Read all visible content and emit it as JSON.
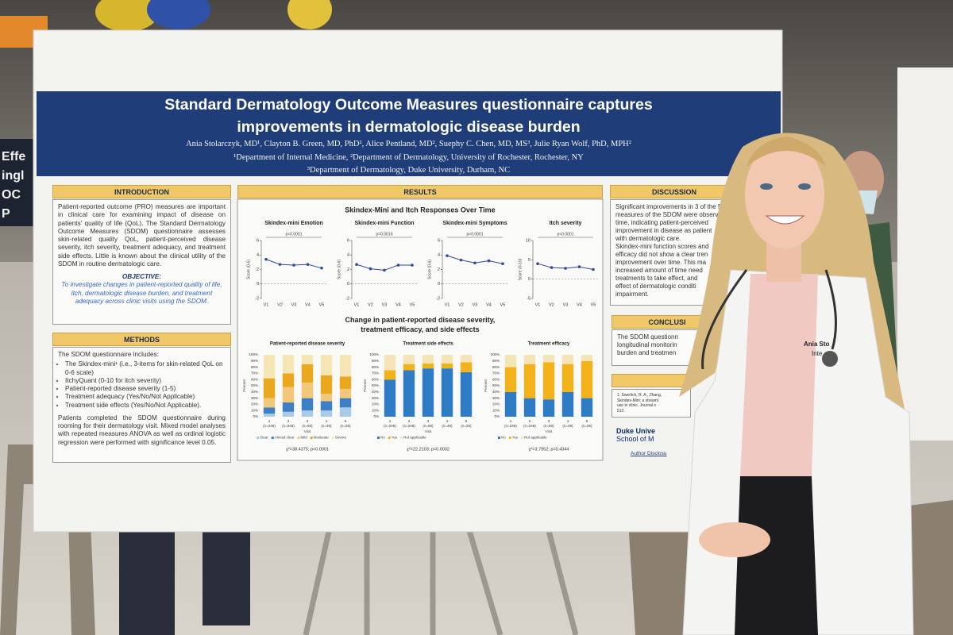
{
  "poster": {
    "title": "Standard Dermatology Outcome Measures questionnaire captures improvements in dermatologic disease burden",
    "authors": "Ania Stolarczyk, MD¹, Clayton B. Green, MD, PhD², Alice Pentland, MD², Suephy C. Chen, MD, MS³, Julie Ryan Wolf, PhD, MPH²",
    "affiliations": [
      "¹Department of Internal Medicine, ²Department of Dermatology, University of Rochester, Rochester, NY",
      "³Department of Dermatology, Duke University, Durham, NC"
    ],
    "introduction": {
      "heading": "INTRODUCTION",
      "text": "Patient-reported outcome (PRO) measures are important in clinical care for examining impact of disease on patients' quality of life (QoL). The Standard Dermatology Outcome Measures (SDOM) questionnaire assesses skin-related quality QoL, patient-perceived disease severity, itch severity, treatment adequacy, and treatment side effects. Little is known about the clinical utility of the SDOM in routine dermatologic care.",
      "objective_heading": "OBJECTIVE:",
      "objective": "To investigate changes in patient-reported quality of life, itch, dermatologic disease burden, and treatment adequacy across clinic visits using the SDOM."
    },
    "methods": {
      "heading": "METHODS",
      "intro": "The SDOM questionnaire includes:",
      "items": [
        "The Skindex-mini¹ (i.e., 3-items for skin-related QoL on 0-6 scale)",
        "ItchyQuant (0-10 for itch severity)",
        "Patient-reported disease severity (1-5)",
        "Treatment adequacy (Yes/No/Not Applicable)",
        "Treatment side effects (Yes/No/Not Applicable)."
      ],
      "text": "Patients completed the SDOM questionnaire during rooming for their dermatology visit. Mixed model analyses with repeated measures ANOVA as well as ordinal logistic regression were performed with significance level 0.05."
    },
    "results": {
      "heading": "RESULTS",
      "line_title": "Skindex-Mini and Itch Responses Over Time",
      "visits": [
        "V1",
        "V2",
        "V3",
        "V4",
        "V5"
      ],
      "line_charts": [
        {
          "title": "Skindex-mini Emotion",
          "p_label": "p<0.0001",
          "y_label": "Score (0-6)",
          "ylim": [
            -2,
            6
          ],
          "yticks": [
            -2,
            0,
            2,
            4,
            6
          ],
          "values": [
            3.4,
            2.7,
            2.6,
            2.7,
            2.2
          ]
        },
        {
          "title": "Skindex-mini Function",
          "p_label": "p=0.0016",
          "y_label": "Score (0-6)",
          "ylim": [
            -2,
            6
          ],
          "yticks": [
            -2,
            0,
            2,
            4,
            6
          ],
          "values": [
            2.7,
            2.1,
            1.9,
            2.6,
            2.6
          ]
        },
        {
          "title": "Skindex-mini Symptoms",
          "p_label": "p<0.0001",
          "y_label": "Score (0-6)",
          "ylim": [
            -2,
            6
          ],
          "yticks": [
            -2,
            0,
            2,
            4,
            6
          ],
          "values": [
            3.9,
            3.3,
            2.9,
            3.2,
            2.8
          ]
        },
        {
          "title": "Itch severity",
          "p_label": "p<0.0001",
          "y_label": "Score (0-10)",
          "ylim": [
            -5,
            10
          ],
          "yticks": [
            -5,
            0,
            5,
            10
          ],
          "values": [
            4,
            3,
            2.8,
            3.2,
            2.5
          ]
        }
      ],
      "bar_title": "Change in patient-reported disease severity, treatment efficacy, and side effects",
      "percent_ticks": [
        {
          "value": 0,
          "label": "0%"
        },
        {
          "value": 10,
          "label": "10%"
        },
        {
          "value": 20,
          "label": "20%"
        },
        {
          "value": 30,
          "label": "30%"
        },
        {
          "value": 40,
          "label": "40%"
        },
        {
          "value": 50,
          "label": "50%"
        },
        {
          "value": 60,
          "label": "60%"
        },
        {
          "value": 70,
          "label": "70%"
        },
        {
          "value": 80,
          "label": "80%"
        },
        {
          "value": 90,
          "label": "90%"
        },
        {
          "value": 100,
          "label": "100%"
        }
      ],
      "x_label": "Visit",
      "y_label": "Percent",
      "bar_visits": [
        "1",
        "2",
        "3",
        "4",
        "5"
      ],
      "bar_ns": [
        "(n=246)",
        "(n=248)",
        "(n=93)",
        "(n=49)",
        "(n=25)"
      ],
      "bar_charts": [
        {
          "title": "Patient-reported disease severity",
          "stat": "χ²=38.4375; p<0.0001",
          "series": [
            {
              "name": "Clear",
              "color": "#a9cbe8",
              "values": [
                5,
                8,
                10,
                10,
                15
              ]
            },
            {
              "name": "Almost clear",
              "color": "#3c7fc4",
              "values": [
                10,
                15,
                20,
                15,
                15
              ]
            },
            {
              "name": "Mild",
              "color": "#f3c77a",
              "values": [
                15,
                25,
                25,
                12,
                15
              ]
            },
            {
              "name": "Moderate",
              "color": "#e9a81e",
              "values": [
                32,
                22,
                30,
                30,
                20
              ]
            },
            {
              "name": "Severe",
              "color": "#f7e6b5",
              "values": [
                38,
                30,
                15,
                33,
                35
              ]
            }
          ]
        },
        {
          "title": "Treatment side effects",
          "stat": "χ²=22.2103; p=0.0002",
          "series": [
            {
              "name": "No",
              "color": "#2f7cc6",
              "values": [
                60,
                75,
                78,
                78,
                72
              ]
            },
            {
              "name": "Yes",
              "color": "#f1b21a",
              "values": [
                15,
                10,
                8,
                8,
                16
              ]
            },
            {
              "name": "Not applicable",
              "color": "#f5e4b8",
              "values": [
                25,
                15,
                14,
                14,
                12
              ]
            }
          ]
        },
        {
          "title": "Treatment efficacy",
          "stat": "χ²=3.7952; p=0.4344",
          "series": [
            {
              "name": "No",
              "color": "#2f7cc6",
              "values": [
                40,
                30,
                28,
                40,
                30
              ]
            },
            {
              "name": "Yes",
              "color": "#f1b21a",
              "values": [
                40,
                55,
                60,
                45,
                60
              ]
            },
            {
              "name": "Not applicable",
              "color": "#f5e4b8",
              "values": [
                20,
                15,
                12,
                15,
                10
              ]
            }
          ]
        }
      ]
    },
    "discussion": {
      "heading": "DISCUSSION",
      "lines": [
        "Significant improvements in 3 of the 5",
        "measures of the SDOM were observ",
        "time, indicating patient-perceived",
        "improvement in disease as patient",
        "with dermatologic care.",
        "Skindex-mini function scores and",
        "efficacy did not show a clear tren",
        "improvement over time. This ma",
        "increased amount of time need",
        "treatments to take effect, and",
        "effect of dermatologic conditi",
        "impairment."
      ]
    },
    "conclusion": {
      "heading": "CONCLUSI",
      "lines": [
        "The SDOM questionn",
        "longitudinal monitorin",
        "burden and treatmen"
      ]
    },
    "references": {
      "lines": [
        "1.  Swerlick, R. A., Zhang,",
        "Skindex-Mini: a streaml",
        "use in clinic. Journal o",
        "512."
      ]
    },
    "logo": [
      "Duke Unive",
      "School of M"
    ],
    "disclosure": "Author Disclosu"
  },
  "badge": [
    "Ania Sto",
    "Inte"
  ],
  "sign": [
    "Effe",
    "ingl",
    "OC",
    "P"
  ]
}
